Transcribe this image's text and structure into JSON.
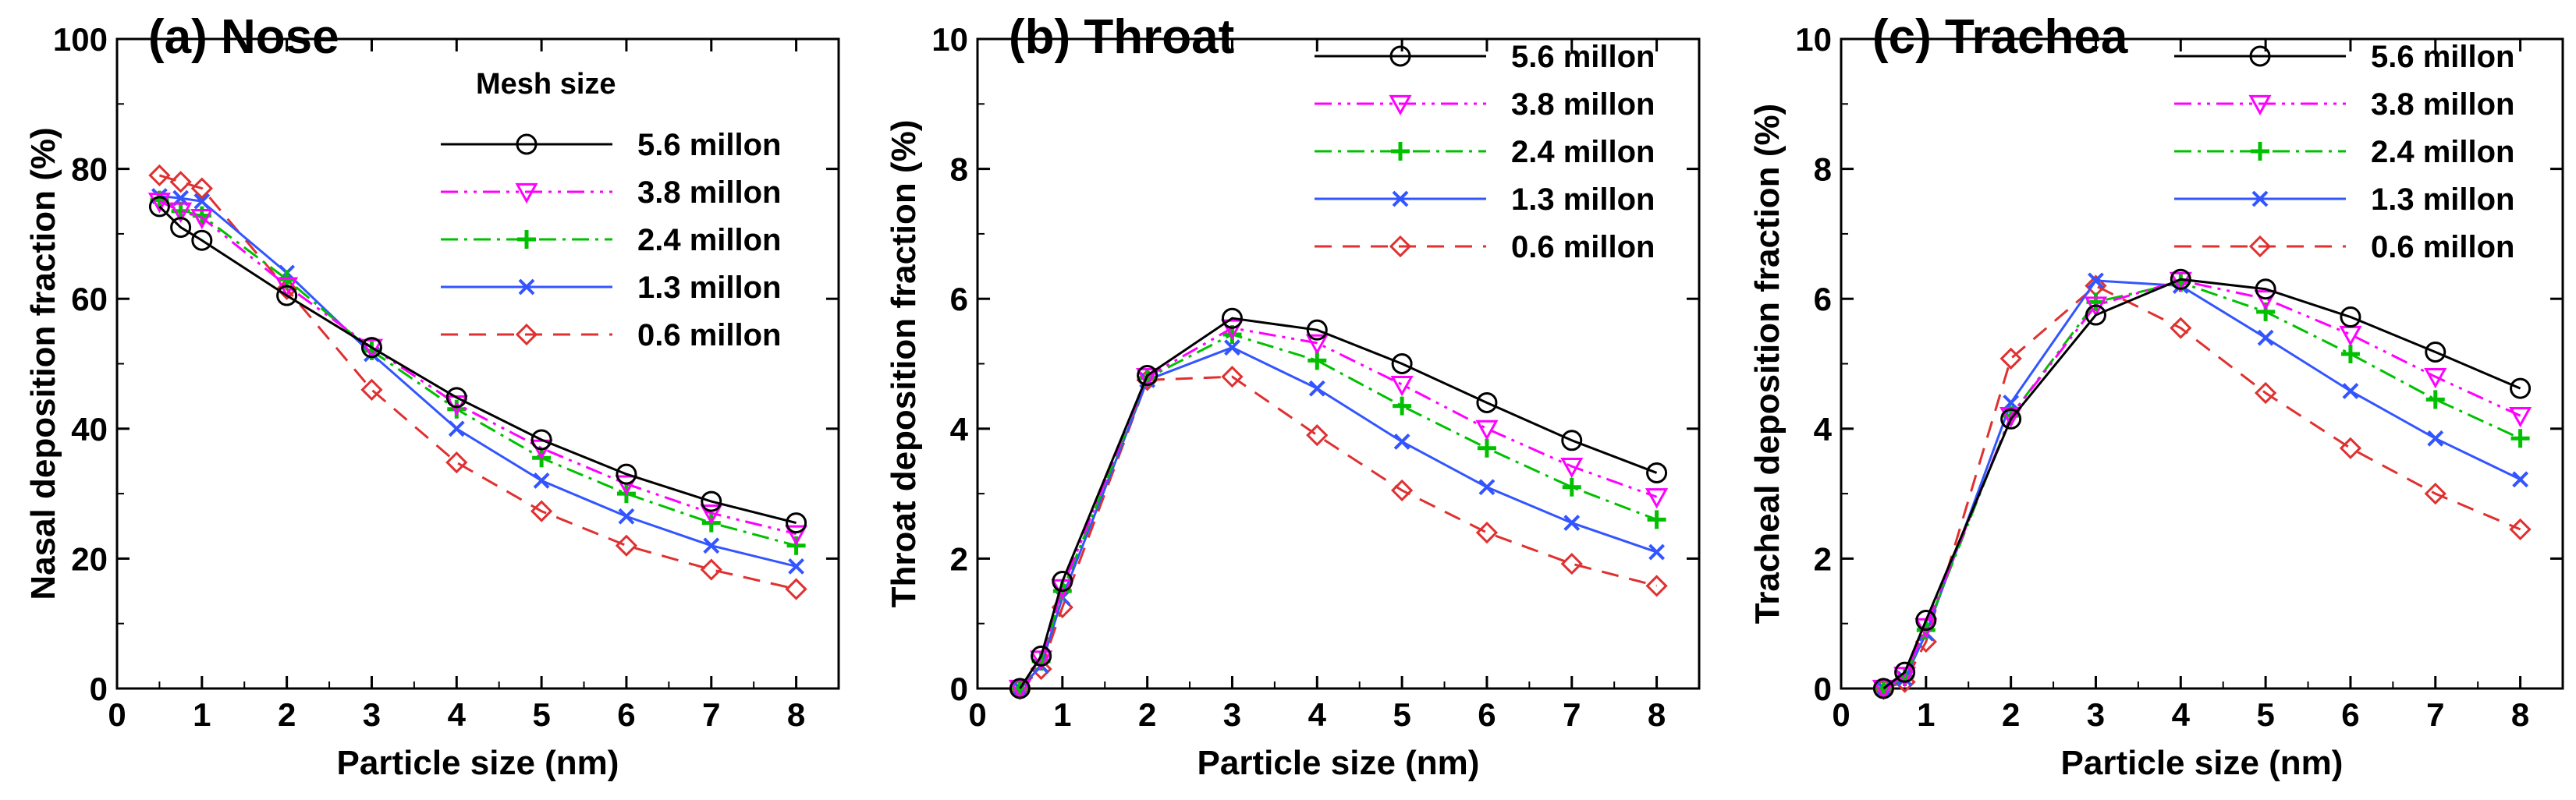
{
  "chart_data": [
    {
      "type": "line",
      "title": "(a) Nose",
      "xlabel": "Particle size (nm)",
      "ylabel": "Nasal deposition fraction (%)",
      "xlim": [
        0,
        8.5
      ],
      "ylim": [
        0,
        100
      ],
      "xticks": [
        0,
        1,
        2,
        3,
        4,
        5,
        6,
        7,
        8
      ],
      "yticks": [
        0,
        20,
        40,
        60,
        80,
        100
      ],
      "legend_title": "Mesh size",
      "legend_position": "top-right",
      "grid": false,
      "series": [
        {
          "name": "5.6 millon",
          "color": "#000000",
          "dash": "solid",
          "marker": "circle",
          "x": [
            0.5,
            0.75,
            1,
            2,
            3,
            4,
            5,
            6,
            7,
            8
          ],
          "y": [
            74.2,
            71.0,
            69.0,
            60.5,
            52.5,
            44.8,
            38.3,
            33.0,
            28.8,
            25.5
          ]
        },
        {
          "name": "3.8 millon",
          "color": "#ff00ff",
          "dash": "dashdotdot",
          "marker": "triangle-down",
          "x": [
            0.5,
            0.75,
            1,
            2,
            3,
            4,
            5,
            6,
            7,
            8
          ],
          "y": [
            75.0,
            73.5,
            72.5,
            62.0,
            52.5,
            43.8,
            37.0,
            31.5,
            27.0,
            23.8
          ]
        },
        {
          "name": "2.4 millon",
          "color": "#00c000",
          "dash": "dashdot",
          "marker": "plus",
          "x": [
            0.5,
            0.75,
            1,
            2,
            3,
            4,
            5,
            6,
            7,
            8
          ],
          "y": [
            75.2,
            73.5,
            72.8,
            63.0,
            52.0,
            43.0,
            35.5,
            30.0,
            25.5,
            22.0
          ]
        },
        {
          "name": "1.3 millon",
          "color": "#3355ff",
          "dash": "solid",
          "marker": "x",
          "x": [
            0.5,
            0.75,
            1,
            2,
            3,
            4,
            5,
            6,
            7,
            8
          ],
          "y": [
            75.8,
            75.5,
            75.0,
            64.0,
            51.5,
            40.0,
            32.0,
            26.5,
            22.0,
            18.8
          ]
        },
        {
          "name": "0.6 millon",
          "color": "#e03030",
          "dash": "dashed",
          "marker": "diamond",
          "x": [
            0.5,
            0.75,
            1,
            2,
            3,
            4,
            5,
            6,
            7,
            8
          ],
          "y": [
            79.0,
            78.0,
            77.0,
            61.5,
            46.0,
            34.8,
            27.3,
            22.0,
            18.3,
            15.3
          ]
        }
      ]
    },
    {
      "type": "line",
      "title": "(b) Throat",
      "xlabel": "Particle size (nm)",
      "ylabel": "Throat deposition fraction (%)",
      "xlim": [
        0,
        8.5
      ],
      "ylim": [
        0,
        10
      ],
      "xticks": [
        0,
        1,
        2,
        3,
        4,
        5,
        6,
        7,
        8
      ],
      "yticks": [
        0,
        2,
        4,
        6,
        8,
        10
      ],
      "legend_title": "",
      "legend_position": "top-right",
      "grid": false,
      "series": [
        {
          "name": "5.6 millon",
          "color": "#000000",
          "dash": "solid",
          "marker": "circle",
          "x": [
            0.5,
            0.75,
            1,
            2,
            3,
            4,
            5,
            6,
            7,
            8
          ],
          "y": [
            0.0,
            0.5,
            1.65,
            4.82,
            5.7,
            5.52,
            5.0,
            4.4,
            3.82,
            3.32
          ]
        },
        {
          "name": "3.8 millon",
          "color": "#ff00ff",
          "dash": "dashdotdot",
          "marker": "triangle-down",
          "x": [
            0.5,
            0.75,
            1,
            2,
            3,
            4,
            5,
            6,
            7,
            8
          ],
          "y": [
            0.0,
            0.45,
            1.55,
            4.8,
            5.55,
            5.32,
            4.68,
            4.0,
            3.42,
            2.95
          ]
        },
        {
          "name": "2.4 millon",
          "color": "#00c000",
          "dash": "dashdot",
          "marker": "plus",
          "x": [
            0.5,
            0.75,
            1,
            2,
            3,
            4,
            5,
            6,
            7,
            8
          ],
          "y": [
            0.0,
            0.42,
            1.5,
            4.78,
            5.45,
            5.05,
            4.35,
            3.7,
            3.1,
            2.6
          ]
        },
        {
          "name": "1.3 millon",
          "color": "#3355ff",
          "dash": "solid",
          "marker": "x",
          "x": [
            0.5,
            0.75,
            1,
            2,
            3,
            4,
            5,
            6,
            7,
            8
          ],
          "y": [
            0.0,
            0.35,
            1.4,
            4.75,
            5.25,
            4.62,
            3.8,
            3.1,
            2.55,
            2.1
          ]
        },
        {
          "name": "0.6 millon",
          "color": "#e03030",
          "dash": "dashed",
          "marker": "diamond",
          "x": [
            0.5,
            0.75,
            1,
            2,
            3,
            4,
            5,
            6,
            7,
            8
          ],
          "y": [
            0.0,
            0.3,
            1.25,
            4.75,
            4.8,
            3.9,
            3.05,
            2.4,
            1.92,
            1.58
          ]
        }
      ]
    },
    {
      "type": "line",
      "title": "(c) Trachea",
      "xlabel": "Particle size (nm)",
      "ylabel": "Tracheal deposition fraction (%)",
      "xlim": [
        0,
        8.5
      ],
      "ylim": [
        0,
        10
      ],
      "xticks": [
        0,
        1,
        2,
        3,
        4,
        5,
        6,
        7,
        8
      ],
      "yticks": [
        0,
        2,
        4,
        6,
        8,
        10
      ],
      "legend_title": "",
      "legend_position": "top-right",
      "grid": false,
      "series": [
        {
          "name": "5.6 millon",
          "color": "#000000",
          "dash": "solid",
          "marker": "circle",
          "x": [
            0.5,
            0.75,
            1,
            2,
            3,
            4,
            5,
            6,
            7,
            8
          ],
          "y": [
            0.0,
            0.25,
            1.05,
            4.15,
            5.75,
            6.3,
            6.15,
            5.72,
            5.18,
            4.62
          ]
        },
        {
          "name": "3.8 millon",
          "color": "#ff00ff",
          "dash": "dashdotdot",
          "marker": "triangle-down",
          "x": [
            0.5,
            0.75,
            1,
            2,
            3,
            4,
            5,
            6,
            7,
            8
          ],
          "y": [
            0.0,
            0.2,
            0.95,
            4.2,
            5.9,
            6.28,
            6.0,
            5.45,
            4.8,
            4.2
          ]
        },
        {
          "name": "2.4 millon",
          "color": "#00c000",
          "dash": "dashdot",
          "marker": "plus",
          "x": [
            0.5,
            0.75,
            1,
            2,
            3,
            4,
            5,
            6,
            7,
            8
          ],
          "y": [
            0.0,
            0.18,
            0.9,
            4.2,
            5.95,
            6.25,
            5.8,
            5.15,
            4.45,
            3.85
          ]
        },
        {
          "name": "1.3 millon",
          "color": "#3355ff",
          "dash": "solid",
          "marker": "x",
          "x": [
            0.5,
            0.75,
            1,
            2,
            3,
            4,
            5,
            6,
            7,
            8
          ],
          "y": [
            0.0,
            0.15,
            0.85,
            4.4,
            6.28,
            6.2,
            5.4,
            4.58,
            3.85,
            3.22
          ]
        },
        {
          "name": "0.6 millon",
          "color": "#e03030",
          "dash": "dashed",
          "marker": "diamond",
          "x": [
            0.5,
            0.75,
            1,
            2,
            3,
            4,
            5,
            6,
            7,
            8
          ],
          "y": [
            0.0,
            0.1,
            0.72,
            5.08,
            6.2,
            5.55,
            4.55,
            3.7,
            3.0,
            2.45
          ]
        }
      ]
    }
  ]
}
